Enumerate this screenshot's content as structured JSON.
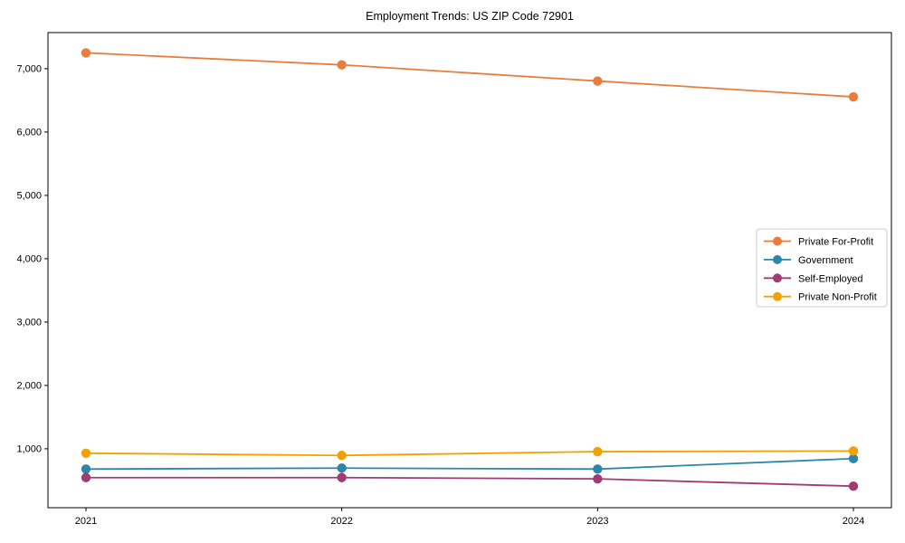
{
  "chart_data": {
    "type": "line",
    "title": "Employment Trends: US ZIP Code 72901",
    "xlabel": "",
    "ylabel": "",
    "x": [
      "2021",
      "2022",
      "2023",
      "2024"
    ],
    "series": [
      {
        "name": "Private For-Profit",
        "color": "#E87D3E",
        "values": [
          7250,
          7060,
          6805,
          6555
        ]
      },
      {
        "name": "Government",
        "color": "#2E86AB",
        "values": [
          680,
          695,
          680,
          845
        ]
      },
      {
        "name": "Self-Employed",
        "color": "#A23B72",
        "values": [
          545,
          545,
          525,
          410
        ]
      },
      {
        "name": "Private Non-Profit",
        "color": "#F0A202",
        "values": [
          930,
          895,
          955,
          965
        ]
      }
    ],
    "yticks": [
      1000,
      2000,
      3000,
      4000,
      5000,
      6000,
      7000
    ],
    "ytick_labels": [
      "1,000",
      "2,000",
      "3,000",
      "4,000",
      "5,000",
      "6,000",
      "7,000"
    ],
    "ylim": [
      70,
      7570
    ],
    "grid": false,
    "legend_position": "center right",
    "legend_border_color": "#cccccc",
    "axis_color": "#000000"
  }
}
